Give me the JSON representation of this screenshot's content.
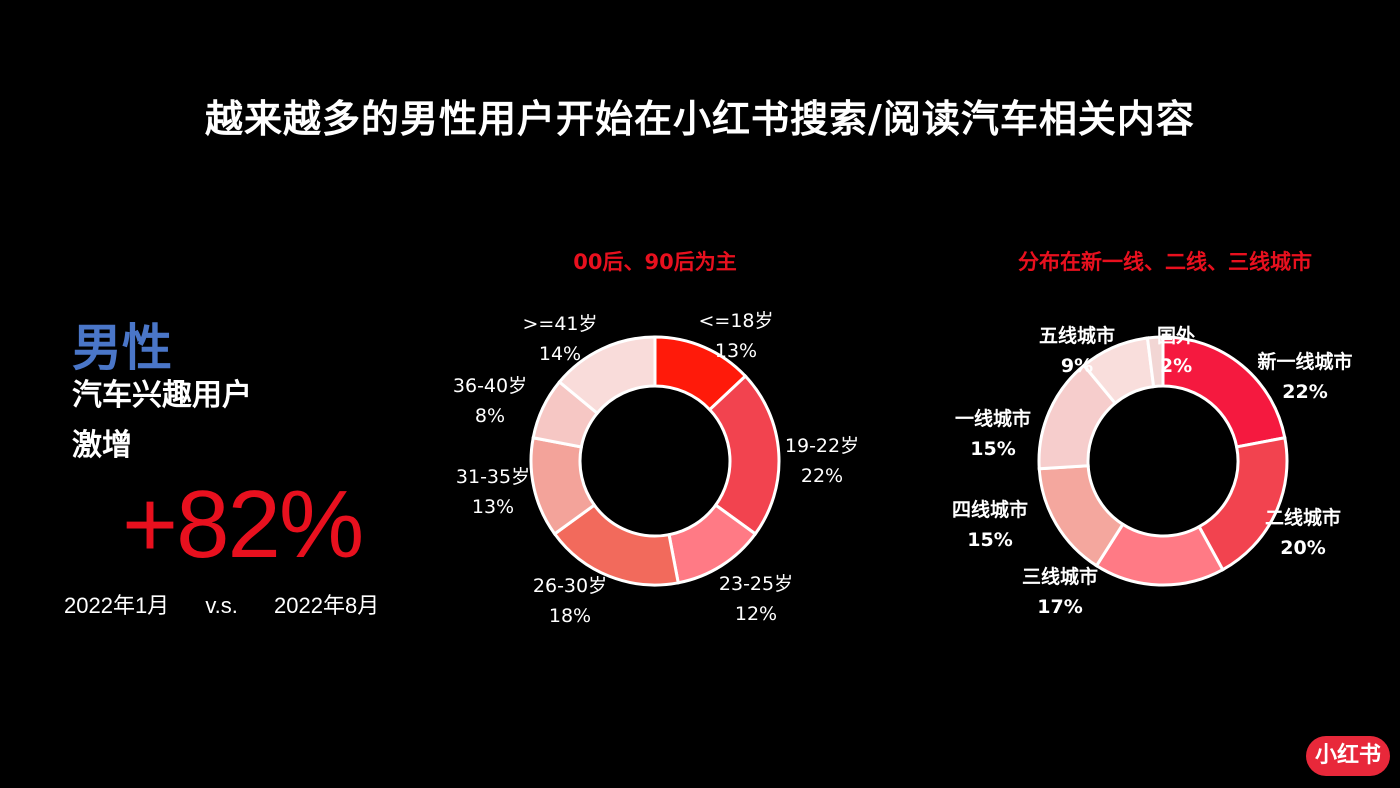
{
  "title": "越来越多的男性用户开始在小红书搜索/阅读汽车相关内容",
  "left": {
    "gender": "男性",
    "line1": "汽车兴趣用户",
    "line2": "激增",
    "growth": "+82%",
    "date_from": "2022年1月",
    "vs": "v.s.",
    "date_to": "2022年8月"
  },
  "logo_text": "小红书",
  "chart_data": [
    {
      "type": "pie",
      "title": "00后、90后为主",
      "categories": [
        "<=18岁",
        "19-22岁",
        "23-25岁",
        "26-30岁",
        "31-35岁",
        "36-40岁",
        ">=41岁"
      ],
      "values": [
        13,
        22,
        12,
        18,
        13,
        8,
        14
      ],
      "value_labels": [
        "13%",
        "22%",
        "12%",
        "18%",
        "13%",
        "8%",
        "14%"
      ],
      "colors": [
        "#ff1a0a",
        "#f2434f",
        "#ff7a85",
        "#f26a5c",
        "#f3a39a",
        "#f6c7c4",
        "#f9dcda"
      ]
    },
    {
      "type": "pie",
      "title": "分布在新一线、二线、三线城市",
      "categories": [
        "新一线城市",
        "二线城市",
        "三线城市",
        "四线城市",
        "一线城市",
        "五线城市",
        "国外"
      ],
      "values": [
        22,
        20,
        17,
        15,
        15,
        9,
        2
      ],
      "value_labels": [
        "22%",
        "20%",
        "17%",
        "15%",
        "15%",
        "9%",
        "2%"
      ],
      "colors": [
        "#f5193f",
        "#f2434f",
        "#ff7a85",
        "#f4a79e",
        "#f6cdcc",
        "#f9dedc",
        "#f2d6d4"
      ]
    }
  ]
}
